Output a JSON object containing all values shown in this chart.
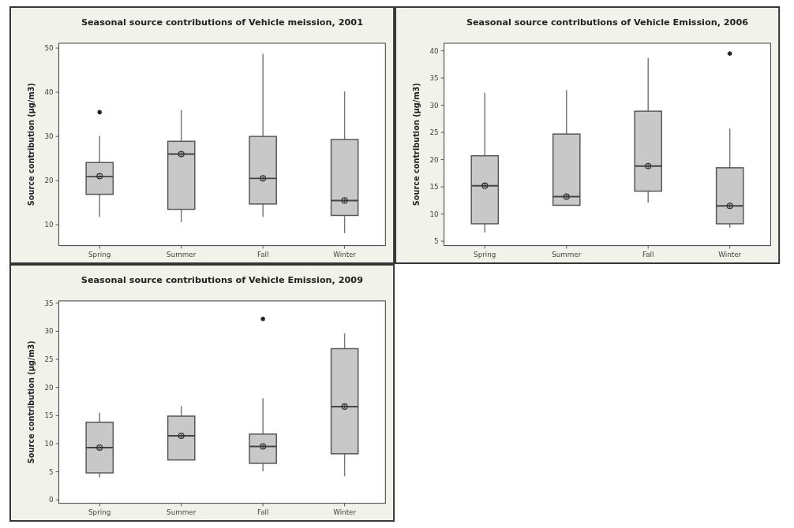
{
  "chart_data": [
    {
      "type": "box",
      "title": "Seasonal source contributions of Vehicle meission, 2001",
      "ylabel": "Source contribution (µg/m3)",
      "categories": [
        "Spring",
        "Summer",
        "Fall",
        "Winter"
      ],
      "ylim": [
        5.3,
        51.1
      ],
      "yticks": [
        10,
        20,
        30,
        40,
        50
      ],
      "boxes": [
        {
          "low": 11.8,
          "q1": 16.9,
          "median": 20.9,
          "q3": 24.1,
          "high": 30.1,
          "mean": 21,
          "outliers": [
            35.5
          ]
        },
        {
          "low": 10.6,
          "q1": 13.5,
          "median": 26.0,
          "q3": 28.9,
          "high": 36.0,
          "mean": 26.0
        },
        {
          "low": 11.8,
          "q1": 14.7,
          "median": 20.5,
          "q3": 30.0,
          "high": 48.7,
          "mean": 20.5
        },
        {
          "low": 8.1,
          "q1": 12.1,
          "median": 15.5,
          "q3": 29.3,
          "high": 40.2,
          "mean": 15.5
        }
      ]
    },
    {
      "type": "box",
      "title": "Seasonal source contributions of Vehicle Emission, 2006",
      "ylabel": "Source contribution (µg/m3)",
      "categories": [
        "Spring",
        "Summer",
        "Fall",
        "Winter"
      ],
      "ylim": [
        4.2,
        41.4
      ],
      "yticks": [
        5,
        10,
        15,
        20,
        25,
        30,
        35,
        40
      ],
      "boxes": [
        {
          "low": 6.6,
          "q1": 8.2,
          "median": 15.2,
          "q3": 20.7,
          "high": 32.3,
          "mean": 15.2
        },
        {
          "low": 11.6,
          "q1": 11.6,
          "median": 13.2,
          "q3": 24.7,
          "high": 32.8,
          "mean": 13.2
        },
        {
          "low": 12.1,
          "q1": 14.2,
          "median": 18.8,
          "q3": 28.9,
          "high": 38.7,
          "mean": 18.8
        },
        {
          "low": 7.5,
          "q1": 8.2,
          "median": 11.5,
          "q3": 18.5,
          "high": 25.7,
          "mean": 11.5,
          "outliers": [
            39.5
          ]
        }
      ]
    },
    {
      "type": "box",
      "title": "Seasonal source contributions of Vehicle Emission, 2009",
      "ylabel": "Source contribution (µg/m3)",
      "categories": [
        "Spring",
        "Summer",
        "Fall",
        "Winter"
      ],
      "ylim": [
        -0.6,
        35.4
      ],
      "yticks": [
        0,
        5,
        10,
        15,
        20,
        25,
        30,
        35
      ],
      "boxes": [
        {
          "low": 4.0,
          "q1": 4.8,
          "median": 9.3,
          "q3": 13.8,
          "high": 15.5,
          "mean": 9.3
        },
        {
          "low": 7.1,
          "q1": 7.1,
          "median": 11.4,
          "q3": 14.9,
          "high": 16.7,
          "mean": 11.4
        },
        {
          "low": 5.1,
          "q1": 6.5,
          "median": 9.5,
          "q3": 11.7,
          "high": 18.1,
          "mean": 9.5,
          "outliers": [
            32.2
          ]
        },
        {
          "low": 4.2,
          "q1": 8.2,
          "median": 16.6,
          "q3": 26.9,
          "high": 29.6,
          "mean": 16.6
        }
      ]
    }
  ]
}
